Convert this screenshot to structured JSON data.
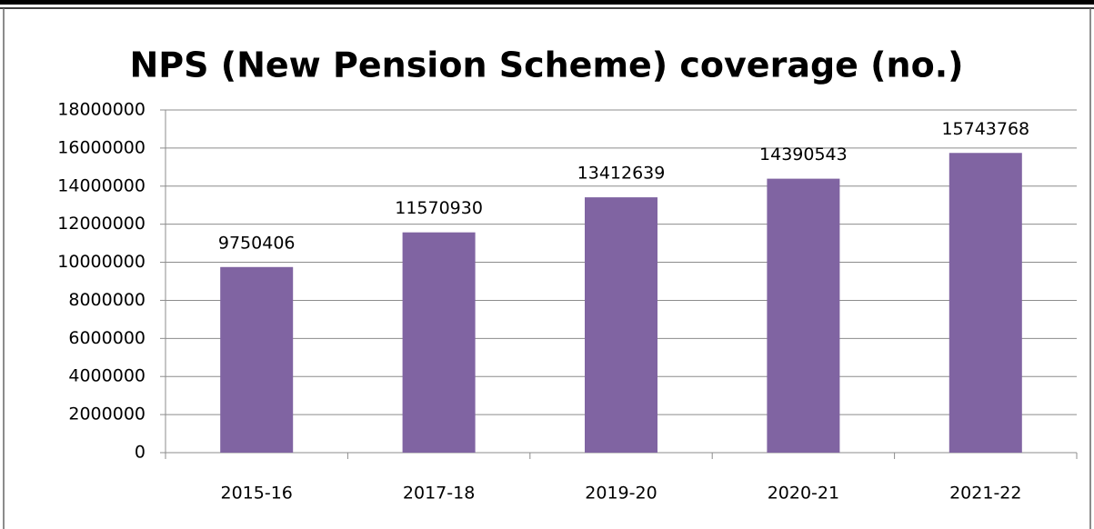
{
  "chart_data": {
    "type": "bar",
    "title": "NPS (New Pension Scheme) coverage (no.)",
    "categories": [
      "2015-16",
      "2017-18",
      "2019-20",
      "2020-21",
      "2021-22"
    ],
    "values": [
      9750406,
      11570930,
      13412639,
      14390543,
      15743768
    ],
    "color": "#8064a2",
    "ylim": [
      0,
      18000000
    ],
    "yticks": [
      0,
      2000000,
      4000000,
      6000000,
      8000000,
      10000000,
      12000000,
      14000000,
      16000000,
      18000000
    ],
    "grid": true
  }
}
